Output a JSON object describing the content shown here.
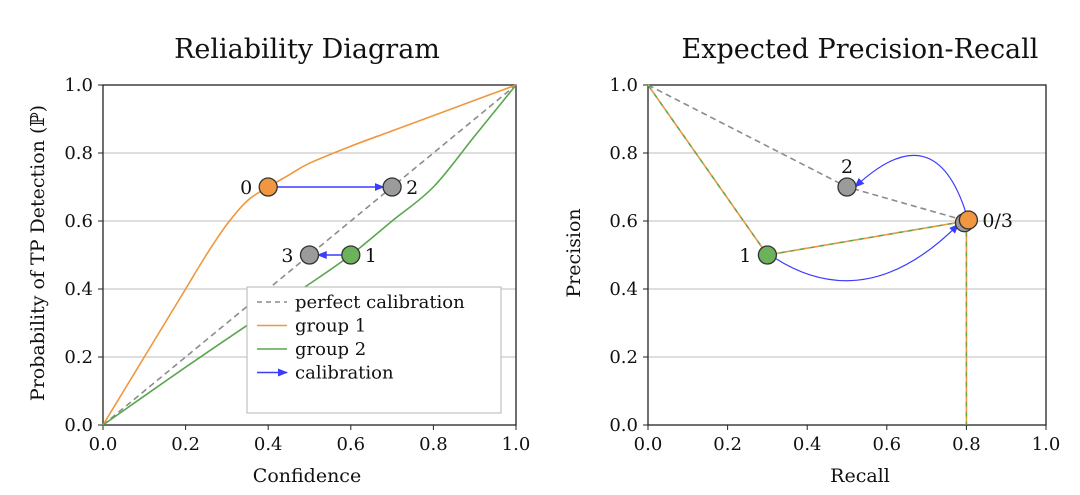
{
  "chart_data": [
    {
      "type": "line",
      "title": "Reliability Diagram",
      "xlabel": "Confidence",
      "ylabel": "Probability of TP Detection (ℙ)",
      "xlim": [
        0,
        1
      ],
      "ylim": [
        0,
        1
      ],
      "x_ticks": [
        "0.0",
        "0.2",
        "0.4",
        "0.6",
        "0.8",
        "1.0"
      ],
      "y_ticks": [
        "0.0",
        "0.2",
        "0.4",
        "0.6",
        "0.8",
        "1.0"
      ],
      "grid": "horizontal",
      "series": [
        {
          "name": "perfect calibration",
          "style": "dashed",
          "color": "#8c8c8c",
          "x": [
            0,
            1
          ],
          "y": [
            0,
            1
          ]
        },
        {
          "name": "group 1",
          "style": "solid",
          "color": "#f0973f",
          "x": [
            0,
            0.05,
            0.1,
            0.15,
            0.2,
            0.25,
            0.3,
            0.35,
            0.4,
            0.45,
            0.5,
            0.6,
            0.7,
            0.8,
            0.9,
            1.0
          ],
          "y": [
            0,
            0.1,
            0.2,
            0.3,
            0.4,
            0.5,
            0.59,
            0.66,
            0.7,
            0.735,
            0.77,
            0.82,
            0.865,
            0.91,
            0.955,
            1.0
          ]
        },
        {
          "name": "group 2",
          "style": "solid",
          "color": "#5aa64f",
          "x": [
            0,
            0.2,
            0.4,
            0.5,
            0.6,
            0.7,
            0.8,
            0.9,
            1.0
          ],
          "y": [
            0,
            0.17,
            0.335,
            0.415,
            0.5,
            0.6,
            0.7,
            0.85,
            1.0
          ]
        }
      ],
      "points": [
        {
          "label": "0",
          "x": 0.4,
          "y": 0.7,
          "color": "#f0973f",
          "label_side": "left"
        },
        {
          "label": "2",
          "x": 0.7,
          "y": 0.7,
          "color": "#9b9b9b",
          "label_side": "right"
        },
        {
          "label": "3",
          "x": 0.5,
          "y": 0.5,
          "color": "#9b9b9b",
          "label_side": "left"
        },
        {
          "label": "1",
          "x": 0.6,
          "y": 0.5,
          "color": "#6bb25b",
          "label_side": "right"
        }
      ],
      "arrows": [
        {
          "from": [
            0.42,
            0.7
          ],
          "to": [
            0.68,
            0.7
          ],
          "color": "#3c3cff"
        },
        {
          "from": [
            0.58,
            0.5
          ],
          "to": [
            0.52,
            0.5
          ],
          "color": "#3c3cff"
        }
      ],
      "legend": {
        "position": "bottom-right",
        "entries": [
          {
            "label": "perfect calibration",
            "kind": "dashed",
            "color": "#8c8c8c"
          },
          {
            "label": "group 1",
            "kind": "line",
            "color": "#f0973f"
          },
          {
            "label": "group 2",
            "kind": "line",
            "color": "#5aa64f"
          },
          {
            "label": "calibration",
            "kind": "arrow",
            "color": "#3c3cff"
          }
        ]
      }
    },
    {
      "type": "line",
      "title": "Expected Precision-Recall",
      "xlabel": "Recall",
      "ylabel": "Precision",
      "xlim": [
        0,
        1
      ],
      "ylim": [
        0,
        1
      ],
      "x_ticks": [
        "0.0",
        "0.2",
        "0.4",
        "0.6",
        "0.8",
        "1.0"
      ],
      "y_ticks": [
        "0.0",
        "0.2",
        "0.4",
        "0.6",
        "0.8",
        "1.0"
      ],
      "grid": "horizontal",
      "series": [
        {
          "name": "gray-dashed",
          "style": "dashed",
          "color": "#8c8c8c",
          "x": [
            0,
            0.5,
            0.8
          ],
          "y": [
            1.0,
            0.7,
            0.6
          ]
        },
        {
          "name": "green-dashed",
          "style": "dashed",
          "color": "#5aa64f",
          "x": [
            0,
            0.3,
            0.8,
            0.8
          ],
          "y": [
            1.0,
            0.5,
            0.6,
            0
          ]
        },
        {
          "name": "orange-dashed",
          "style": "dashed",
          "color": "#f0973f",
          "x": [
            0,
            0.3,
            0.8,
            0.8
          ],
          "y": [
            1.0,
            0.5,
            0.6,
            0
          ]
        }
      ],
      "points": [
        {
          "label": "2",
          "x": 0.5,
          "y": 0.7,
          "color": "#9b9b9b",
          "label_side": "above-left"
        },
        {
          "label": "1",
          "x": 0.3,
          "y": 0.5,
          "color": "#6bb25b",
          "label_side": "left"
        },
        {
          "label": "",
          "x": 0.795,
          "y": 0.595,
          "color": "#9b9b9b",
          "label_side": "none"
        },
        {
          "label": "0/3",
          "x": 0.805,
          "y": 0.603,
          "color": "#f0973f",
          "label_side": "right"
        }
      ],
      "curved_arrows": [
        {
          "from": [
            0.8,
            0.62
          ],
          "to": [
            0.52,
            0.7
          ],
          "control": [
            0.72,
            0.92
          ],
          "color": "#3c3cff"
        },
        {
          "from": [
            0.32,
            0.49
          ],
          "to": [
            0.78,
            0.59
          ],
          "control": [
            0.55,
            0.32
          ],
          "color": "#3c3cff"
        }
      ]
    }
  ]
}
